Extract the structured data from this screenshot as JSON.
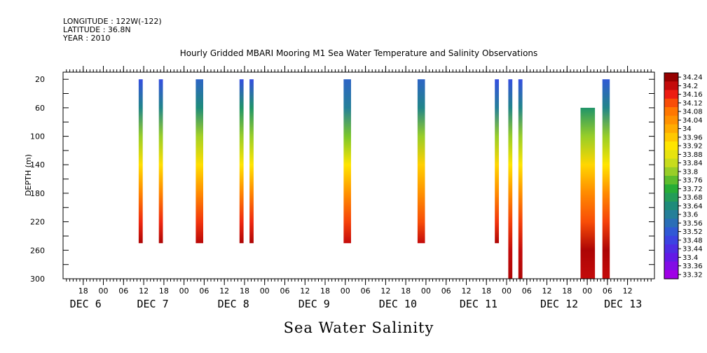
{
  "header": {
    "longitude": "LONGITUDE : 122W(-122)",
    "latitude": "LATITUDE : 36.8N",
    "year": "YEAR : 2010"
  },
  "chart_data": {
    "type": "heatmap",
    "title": "Hourly Gridded MBARI Mooring M1 Sea Water Temperature and Salinity Observations",
    "ylabel": "DEPTH (m)",
    "variable_label": "Sea Water Salinity",
    "x_hours_range": [
      0,
      176
    ],
    "ylim": [
      300,
      10
    ],
    "y_ticks": [
      20,
      60,
      100,
      140,
      180,
      220,
      260,
      300
    ],
    "x_hour_ticks": [
      {
        "h": 6,
        "label": "18"
      },
      {
        "h": 12,
        "label": "00"
      },
      {
        "h": 18,
        "label": "06"
      },
      {
        "h": 24,
        "label": "12"
      },
      {
        "h": 30,
        "label": "18"
      },
      {
        "h": 36,
        "label": "00"
      },
      {
        "h": 42,
        "label": "06"
      },
      {
        "h": 48,
        "label": "12"
      },
      {
        "h": 54,
        "label": "18"
      },
      {
        "h": 60,
        "label": "00"
      },
      {
        "h": 66,
        "label": "06"
      },
      {
        "h": 72,
        "label": "12"
      },
      {
        "h": 78,
        "label": "18"
      },
      {
        "h": 84,
        "label": "00"
      },
      {
        "h": 90,
        "label": "06"
      },
      {
        "h": 96,
        "label": "12"
      },
      {
        "h": 102,
        "label": "18"
      },
      {
        "h": 108,
        "label": "00"
      },
      {
        "h": 114,
        "label": "06"
      },
      {
        "h": 120,
        "label": "12"
      },
      {
        "h": 126,
        "label": "18"
      },
      {
        "h": 132,
        "label": "00"
      },
      {
        "h": 138,
        "label": "06"
      },
      {
        "h": 144,
        "label": "12"
      },
      {
        "h": 150,
        "label": "18"
      },
      {
        "h": 156,
        "label": "00"
      },
      {
        "h": 162,
        "label": "06"
      },
      {
        "h": 168,
        "label": "12"
      }
    ],
    "date_labels": [
      {
        "h": 2,
        "label": "DEC 6"
      },
      {
        "h": 22,
        "label": "DEC 7"
      },
      {
        "h": 46,
        "label": "DEC 8"
      },
      {
        "h": 70,
        "label": "DEC 9"
      },
      {
        "h": 94,
        "label": "DEC 10"
      },
      {
        "h": 118,
        "label": "DEC 11"
      },
      {
        "h": 142,
        "label": "DEC 12"
      },
      {
        "h": 161,
        "label": "DEC 13"
      }
    ],
    "colorbar_levels": [
      "34.24",
      "34.2",
      "34.16",
      "34.12",
      "34.08",
      "34.04",
      "34",
      "33.96",
      "33.92",
      "33.88",
      "33.84",
      "33.8",
      "33.76",
      "33.72",
      "33.68",
      "33.64",
      "33.6",
      "33.56",
      "33.52",
      "33.48",
      "33.44",
      "33.4",
      "33.36",
      "33.32"
    ],
    "profiles": [
      {
        "h_start": 22.5,
        "h_end": 23.7,
        "depth_top": 20,
        "depth_bottom": 250,
        "stops": [
          {
            "d": 20,
            "v": 33.5
          },
          {
            "d": 60,
            "v": 33.62
          },
          {
            "d": 100,
            "v": 33.8
          },
          {
            "d": 140,
            "v": 33.93
          },
          {
            "d": 180,
            "v": 34.06
          },
          {
            "d": 220,
            "v": 34.15
          },
          {
            "d": 250,
            "v": 34.22
          }
        ]
      },
      {
        "h_start": 28.5,
        "h_end": 29.7,
        "depth_top": 20,
        "depth_bottom": 250,
        "stops": [
          {
            "d": 20,
            "v": 33.5
          },
          {
            "d": 60,
            "v": 33.62
          },
          {
            "d": 100,
            "v": 33.8
          },
          {
            "d": 140,
            "v": 33.93
          },
          {
            "d": 180,
            "v": 34.06
          },
          {
            "d": 220,
            "v": 34.15
          },
          {
            "d": 250,
            "v": 34.22
          }
        ]
      },
      {
        "h_start": 39.5,
        "h_end": 41.7,
        "depth_top": 20,
        "depth_bottom": 250,
        "stops": [
          {
            "d": 20,
            "v": 33.54
          },
          {
            "d": 60,
            "v": 33.64
          },
          {
            "d": 100,
            "v": 33.81
          },
          {
            "d": 140,
            "v": 33.93
          },
          {
            "d": 180,
            "v": 34.05
          },
          {
            "d": 220,
            "v": 34.14
          },
          {
            "d": 250,
            "v": 34.21
          }
        ]
      },
      {
        "h_start": 52.5,
        "h_end": 53.7,
        "depth_top": 20,
        "depth_bottom": 250,
        "stops": [
          {
            "d": 20,
            "v": 33.5
          },
          {
            "d": 60,
            "v": 33.66
          },
          {
            "d": 100,
            "v": 33.8
          },
          {
            "d": 140,
            "v": 33.92
          },
          {
            "d": 180,
            "v": 34.06
          },
          {
            "d": 220,
            "v": 34.15
          },
          {
            "d": 250,
            "v": 34.22
          }
        ]
      },
      {
        "h_start": 55.5,
        "h_end": 56.7,
        "depth_top": 20,
        "depth_bottom": 250,
        "stops": [
          {
            "d": 20,
            "v": 33.5
          },
          {
            "d": 60,
            "v": 33.66
          },
          {
            "d": 100,
            "v": 33.8
          },
          {
            "d": 140,
            "v": 33.92
          },
          {
            "d": 180,
            "v": 34.06
          },
          {
            "d": 220,
            "v": 34.15
          },
          {
            "d": 250,
            "v": 34.22
          }
        ]
      },
      {
        "h_start": 83.5,
        "h_end": 85.7,
        "depth_top": 20,
        "depth_bottom": 250,
        "stops": [
          {
            "d": 20,
            "v": 33.54
          },
          {
            "d": 60,
            "v": 33.6
          },
          {
            "d": 100,
            "v": 33.78
          },
          {
            "d": 140,
            "v": 33.92
          },
          {
            "d": 180,
            "v": 34.04
          },
          {
            "d": 220,
            "v": 34.13
          },
          {
            "d": 250,
            "v": 34.2
          }
        ]
      },
      {
        "h_start": 105.5,
        "h_end": 107.7,
        "depth_top": 20,
        "depth_bottom": 250,
        "stops": [
          {
            "d": 20,
            "v": 33.54
          },
          {
            "d": 60,
            "v": 33.62
          },
          {
            "d": 100,
            "v": 33.8
          },
          {
            "d": 140,
            "v": 33.95
          },
          {
            "d": 180,
            "v": 34.04
          },
          {
            "d": 220,
            "v": 34.12
          },
          {
            "d": 250,
            "v": 34.2
          }
        ]
      },
      {
        "h_start": 128.5,
        "h_end": 129.7,
        "depth_top": 20,
        "depth_bottom": 250,
        "stops": [
          {
            "d": 20,
            "v": 33.5
          },
          {
            "d": 60,
            "v": 33.6
          },
          {
            "d": 100,
            "v": 33.8
          },
          {
            "d": 140,
            "v": 33.94
          },
          {
            "d": 180,
            "v": 34.05
          },
          {
            "d": 220,
            "v": 34.14
          },
          {
            "d": 250,
            "v": 34.22
          }
        ]
      },
      {
        "h_start": 132.5,
        "h_end": 133.7,
        "depth_top": 20,
        "depth_bottom": 300,
        "stops": [
          {
            "d": 20,
            "v": 33.5
          },
          {
            "d": 60,
            "v": 33.62
          },
          {
            "d": 100,
            "v": 33.8
          },
          {
            "d": 140,
            "v": 33.92
          },
          {
            "d": 180,
            "v": 34.04
          },
          {
            "d": 220,
            "v": 34.13
          },
          {
            "d": 260,
            "v": 34.2
          },
          {
            "d": 300,
            "v": 34.22
          }
        ]
      },
      {
        "h_start": 135.5,
        "h_end": 136.7,
        "depth_top": 20,
        "depth_bottom": 300,
        "stops": [
          {
            "d": 20,
            "v": 33.5
          },
          {
            "d": 60,
            "v": 33.62
          },
          {
            "d": 100,
            "v": 33.8
          },
          {
            "d": 140,
            "v": 33.92
          },
          {
            "d": 180,
            "v": 34.04
          },
          {
            "d": 220,
            "v": 34.13
          },
          {
            "d": 260,
            "v": 34.2
          },
          {
            "d": 300,
            "v": 34.22
          }
        ]
      },
      {
        "h_start": 154.0,
        "h_end": 158.3,
        "depth_top": 60,
        "depth_bottom": 300,
        "stops": [
          {
            "d": 60,
            "v": 33.66
          },
          {
            "d": 100,
            "v": 33.8
          },
          {
            "d": 140,
            "v": 33.94
          },
          {
            "d": 180,
            "v": 34.05
          },
          {
            "d": 220,
            "v": 34.12
          },
          {
            "d": 260,
            "v": 34.22
          },
          {
            "d": 300,
            "v": 34.2
          }
        ]
      },
      {
        "h_start": 160.5,
        "h_end": 162.7,
        "depth_top": 20,
        "depth_bottom": 300,
        "stops": [
          {
            "d": 20,
            "v": 33.52
          },
          {
            "d": 60,
            "v": 33.62
          },
          {
            "d": 100,
            "v": 33.8
          },
          {
            "d": 140,
            "v": 33.92
          },
          {
            "d": 180,
            "v": 34.05
          },
          {
            "d": 220,
            "v": 34.13
          },
          {
            "d": 260,
            "v": 34.22
          },
          {
            "d": 300,
            "v": 34.2
          }
        ]
      }
    ]
  }
}
